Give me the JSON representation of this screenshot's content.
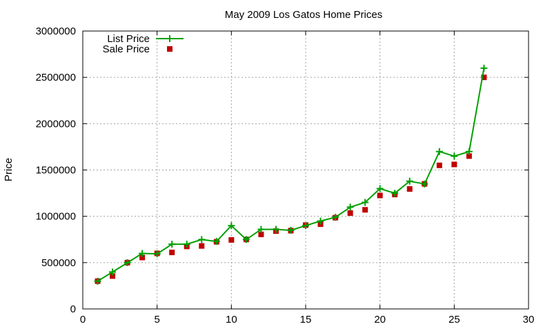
{
  "chart_data": {
    "type": "line",
    "title": "May 2009 Los Gatos Home Prices",
    "xlabel": "",
    "ylabel": "Price",
    "xlim": [
      0,
      30
    ],
    "ylim": [
      0,
      3000000
    ],
    "x_ticks": [
      0,
      5,
      10,
      15,
      20,
      25,
      30
    ],
    "y_ticks": [
      0,
      500000,
      1000000,
      1500000,
      2000000,
      2500000,
      3000000
    ],
    "grid": true,
    "legend_position": "top-left",
    "x": [
      1,
      2,
      3,
      4,
      5,
      6,
      7,
      8,
      9,
      10,
      11,
      12,
      13,
      14,
      15,
      16,
      17,
      18,
      19,
      20,
      21,
      22,
      23,
      24,
      25,
      26,
      27
    ],
    "series": [
      {
        "name": "List Price",
        "style": "lines+points",
        "color": "#00a000",
        "values": [
          299000,
          399000,
          499000,
          599000,
          595000,
          699000,
          699000,
          749000,
          729000,
          899000,
          749000,
          859000,
          859000,
          849000,
          899000,
          949000,
          989000,
          1099000,
          1150000,
          1299000,
          1249000,
          1379000,
          1349000,
          1699000,
          1649000,
          1699000,
          2599000
        ]
      },
      {
        "name": "Sale Price",
        "style": "points",
        "color": "#c00000",
        "values": [
          300000,
          355000,
          500000,
          555000,
          600000,
          610000,
          675000,
          680000,
          725000,
          745000,
          750000,
          805000,
          840000,
          845000,
          905000,
          915000,
          985000,
          1035000,
          1070000,
          1225000,
          1235000,
          1295000,
          1350000,
          1550000,
          1560000,
          1650000,
          2500000
        ]
      }
    ]
  }
}
